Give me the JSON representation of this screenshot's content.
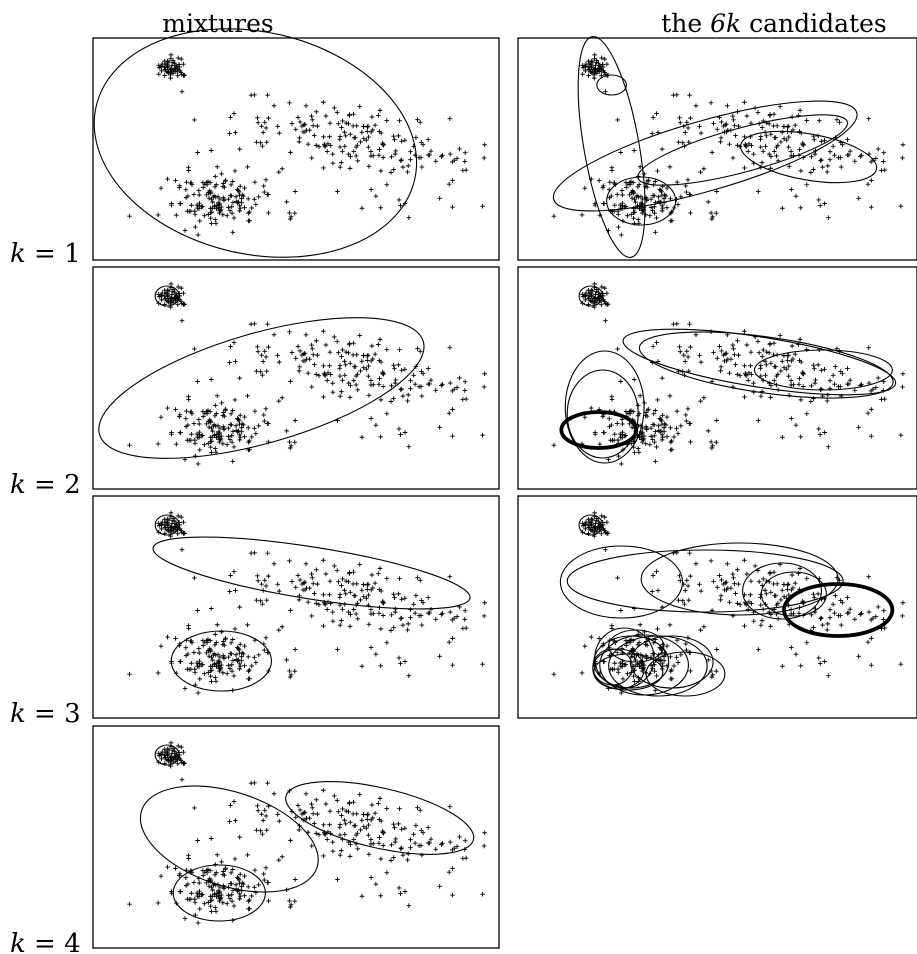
{
  "columns": [
    {
      "id": "mixtures",
      "title": "mixtures"
    },
    {
      "id": "candidates",
      "title_prefix": "the ",
      "title_var": "6k",
      "title_suffix": " candidates"
    }
  ],
  "rows": [
    {
      "k": 1,
      "label_var": "k",
      "label_rest": " = 1"
    },
    {
      "k": 2,
      "label_var": "k",
      "label_rest": " = 2"
    },
    {
      "k": 3,
      "label_var": "k",
      "label_rest": " = 3"
    },
    {
      "k": 4,
      "label_var": "k",
      "label_rest": " = 4"
    }
  ],
  "ink": "#000000",
  "background": "#ffffff"
}
